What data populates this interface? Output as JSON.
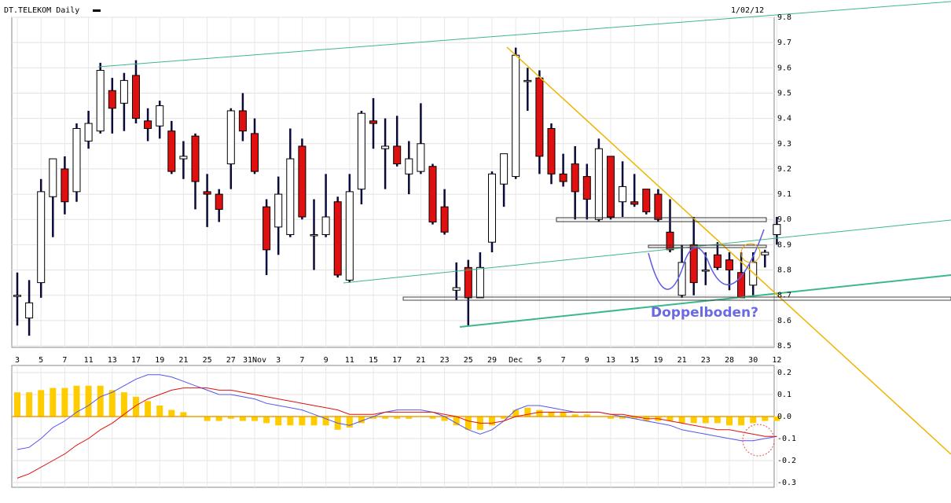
{
  "chart_data": [
    {
      "type": "candlestick",
      "title": "DT.TELEKOM Daily",
      "date_label": "1/02/12",
      "annotation": "Doppelboden?",
      "categories": [
        "3",
        null,
        "5",
        null,
        "7",
        null,
        "11",
        null,
        "13",
        null,
        "17",
        null,
        "19",
        null,
        "21",
        null,
        "25",
        null,
        "27",
        null,
        "31Nov",
        null,
        "3",
        null,
        "7",
        null,
        "9",
        null,
        "11",
        null,
        "15",
        null,
        "17",
        null,
        "21",
        null,
        "23",
        null,
        "25",
        null,
        "29",
        null,
        "Dec",
        null,
        "5",
        null,
        "7",
        null,
        "9",
        null,
        "13",
        null,
        "15",
        null,
        "19",
        null,
        "21",
        null,
        "23",
        null,
        "28",
        null,
        "30",
        null,
        "12"
      ],
      "open": [
        8.7,
        8.61,
        8.75,
        9.09,
        9.2,
        9.11,
        9.31,
        9.35,
        9.51,
        9.46,
        9.57,
        9.39,
        9.37,
        9.35,
        9.24,
        9.33,
        9.11,
        9.1,
        9.22,
        9.43,
        9.34,
        9.05,
        8.97,
        8.94,
        9.29,
        8.94,
        8.94,
        9.07,
        8.76,
        9.12,
        9.39,
        9.28,
        9.29,
        9.18,
        9.19,
        9.21,
        9.05,
        8.72,
        8.81,
        8.69,
        8.91,
        9.14,
        9.17,
        9.55,
        9.56,
        9.36,
        9.18,
        9.22,
        9.17,
        9.0,
        9.25,
        9.07,
        9.07,
        9.12,
        9.1,
        8.95,
        8.7,
        8.9,
        8.8,
        8.86,
        8.84,
        8.79,
        8.74,
        8.86,
        8.94
      ],
      "high": [
        8.79,
        8.76,
        9.16,
        9.24,
        9.25,
        9.38,
        9.43,
        9.62,
        9.56,
        9.58,
        9.63,
        9.44,
        9.47,
        9.39,
        9.31,
        9.34,
        9.18,
        9.12,
        9.44,
        9.5,
        9.4,
        9.08,
        9.17,
        9.36,
        9.32,
        9.08,
        9.18,
        9.09,
        9.18,
        9.43,
        9.48,
        9.4,
        9.41,
        9.31,
        9.46,
        9.22,
        9.12,
        8.83,
        8.84,
        8.87,
        9.19,
        9.26,
        9.68,
        9.6,
        9.59,
        9.38,
        9.26,
        9.29,
        9.22,
        9.32,
        9.25,
        9.23,
        9.18,
        9.12,
        9.12,
        9.08,
        8.9,
        9.01,
        8.87,
        8.91,
        8.87,
        8.87,
        8.87,
        8.88,
        9.01
      ],
      "low": [
        8.58,
        8.54,
        8.69,
        8.93,
        9.02,
        9.07,
        9.28,
        9.34,
        9.34,
        9.35,
        9.38,
        9.31,
        9.32,
        9.18,
        9.16,
        9.04,
        8.97,
        8.99,
        9.12,
        9.31,
        9.18,
        8.78,
        8.86,
        8.93,
        9.0,
        8.8,
        8.93,
        8.77,
        8.75,
        9.06,
        9.28,
        9.12,
        9.21,
        9.1,
        9.18,
        8.98,
        8.94,
        8.68,
        8.58,
        8.69,
        8.87,
        9.05,
        9.16,
        9.43,
        9.18,
        9.14,
        9.13,
        9.0,
        9.0,
        8.99,
        9.0,
        9.01,
        9.05,
        9.02,
        8.99,
        8.87,
        8.69,
        8.7,
        8.74,
        8.8,
        8.72,
        8.69,
        8.7,
        8.81,
        8.9
      ],
      "close": [
        8.7,
        8.67,
        9.11,
        9.24,
        9.07,
        9.36,
        9.38,
        9.59,
        9.44,
        9.55,
        9.4,
        9.36,
        9.45,
        9.19,
        9.25,
        9.15,
        9.1,
        9.04,
        9.43,
        9.35,
        9.19,
        8.88,
        9.1,
        9.24,
        9.01,
        8.94,
        9.01,
        8.78,
        9.11,
        9.42,
        9.38,
        9.29,
        9.22,
        9.24,
        9.3,
        8.99,
        8.95,
        8.73,
        8.69,
        8.81,
        9.18,
        9.26,
        9.65,
        9.55,
        9.25,
        9.18,
        9.15,
        9.11,
        9.08,
        9.28,
        9.01,
        9.13,
        9.06,
        9.03,
        9.0,
        8.88,
        8.83,
        8.75,
        8.8,
        8.81,
        8.8,
        8.69,
        8.83,
        8.87,
        8.98
      ],
      "up_color": "#ffffff",
      "down_color": "#e01010",
      "ylim": [
        8.5,
        9.8
      ],
      "yticks": [
        8.5,
        8.6,
        8.7,
        8.8,
        8.9,
        {
          "value": 9,
          "label": "9.0"
        },
        9.1,
        9.2,
        9.3,
        9.4,
        9.5,
        9.6,
        9.7,
        9.8
      ],
      "grid": true
    },
    {
      "type": "macd",
      "bars": {
        "color": "#ffcc00",
        "values": [
          0.11,
          0.11,
          0.12,
          0.13,
          0.13,
          0.14,
          0.14,
          0.14,
          0.12,
          0.11,
          0.09,
          0.07,
          0.05,
          0.03,
          0.02,
          0.0,
          -0.02,
          -0.02,
          -0.01,
          -0.02,
          -0.02,
          -0.03,
          -0.04,
          -0.04,
          -0.04,
          -0.04,
          -0.04,
          -0.06,
          -0.05,
          -0.03,
          -0.01,
          -0.01,
          -0.01,
          -0.01,
          0.0,
          -0.01,
          -0.02,
          -0.04,
          -0.06,
          -0.06,
          -0.04,
          -0.01,
          0.03,
          0.04,
          0.03,
          0.02,
          0.02,
          0.01,
          0.01,
          0.0,
          -0.01,
          -0.01,
          -0.01,
          -0.02,
          -0.02,
          -0.02,
          -0.03,
          -0.03,
          -0.03,
          -0.03,
          -0.04,
          -0.04,
          -0.03,
          -0.02,
          -0.02
        ]
      },
      "lines": [
        {
          "color": "#5555ee",
          "values": [
            -0.15,
            -0.14,
            -0.1,
            -0.05,
            -0.02,
            0.02,
            0.05,
            0.09,
            0.11,
            0.14,
            0.17,
            0.19,
            0.19,
            0.18,
            0.16,
            0.14,
            0.12,
            0.1,
            0.1,
            0.09,
            0.08,
            0.06,
            0.05,
            0.04,
            0.03,
            0.01,
            -0.01,
            -0.03,
            -0.04,
            -0.02,
            0.0,
            0.02,
            0.03,
            0.03,
            0.03,
            0.02,
            0.0,
            -0.03,
            -0.06,
            -0.08,
            -0.06,
            -0.02,
            0.03,
            0.05,
            0.05,
            0.04,
            0.03,
            0.02,
            0.02,
            0.02,
            0.01,
            0.0,
            -0.01,
            -0.02,
            -0.03,
            -0.04,
            -0.06,
            -0.07,
            -0.08,
            -0.09,
            -0.1,
            -0.11,
            -0.11,
            -0.1,
            -0.09
          ]
        },
        {
          "color": "#dd1111",
          "values": [
            -0.28,
            -0.26,
            -0.23,
            -0.2,
            -0.17,
            -0.13,
            -0.1,
            -0.06,
            -0.03,
            0.01,
            0.05,
            0.08,
            0.1,
            0.12,
            0.13,
            0.13,
            0.13,
            0.12,
            0.12,
            0.11,
            0.1,
            0.09,
            0.08,
            0.07,
            0.06,
            0.05,
            0.04,
            0.03,
            0.01,
            0.01,
            0.01,
            0.02,
            0.02,
            0.02,
            0.02,
            0.02,
            0.01,
            0.0,
            -0.02,
            -0.03,
            -0.03,
            -0.02,
            0.0,
            0.01,
            0.02,
            0.02,
            0.02,
            0.02,
            0.02,
            0.02,
            0.01,
            0.01,
            0.0,
            -0.01,
            -0.01,
            -0.02,
            -0.03,
            -0.04,
            -0.05,
            -0.06,
            -0.06,
            -0.07,
            -0.08,
            -0.09,
            -0.09
          ]
        }
      ],
      "zero_color": "#f0a000",
      "ylim": [
        -0.3,
        0.2
      ],
      "yticks": [
        -0.3,
        -0.2,
        -0.1,
        {
          "value": 0,
          "label": "0.0"
        },
        0.1,
        0.2
      ],
      "grid": true
    }
  ]
}
